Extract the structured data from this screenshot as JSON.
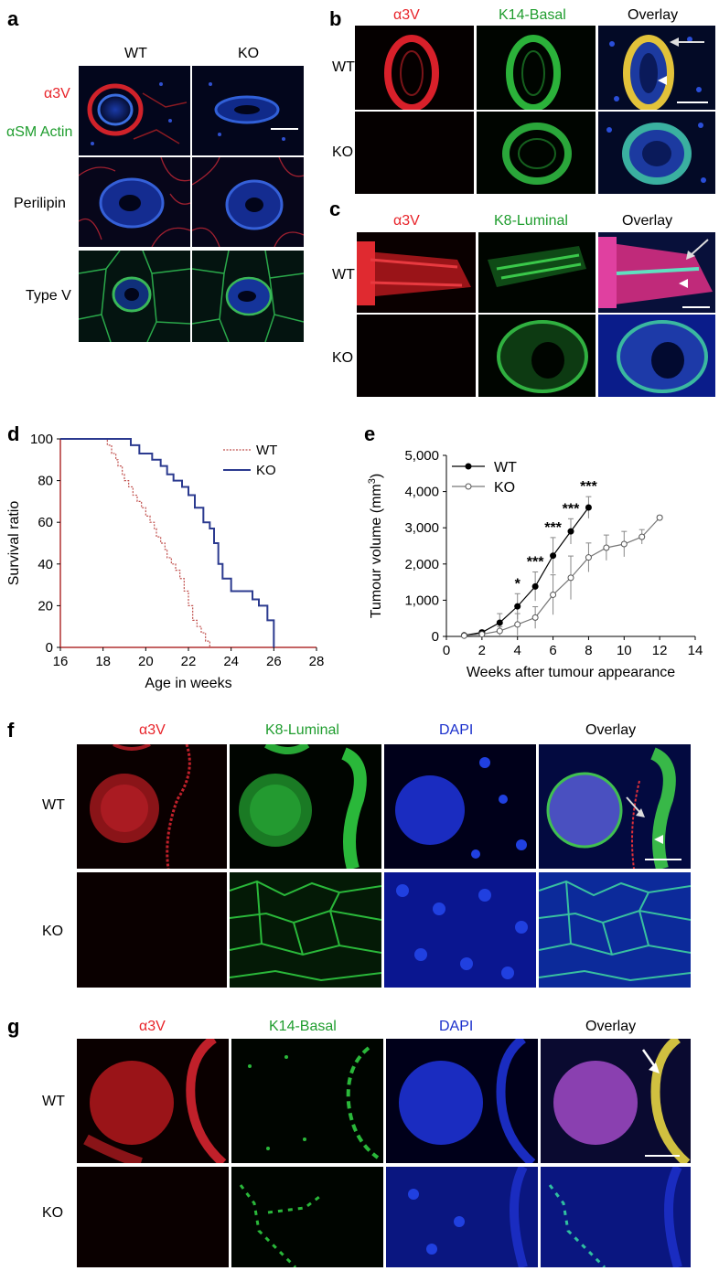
{
  "panels": {
    "a": {
      "letter": "a",
      "columns": [
        "WT",
        "KO"
      ],
      "rows": [
        {
          "label_parts": [
            "α3V",
            "αSM Actin"
          ],
          "label_colors": [
            "#e8242a",
            "#1f9d2e"
          ]
        },
        {
          "label_parts": [
            "Perilipin"
          ]
        },
        {
          "label_parts": [
            "Type V"
          ]
        }
      ]
    },
    "b": {
      "letter": "b",
      "columns": [
        {
          "text": "α3V",
          "color": "#e8242a"
        },
        {
          "text": "K14-Basal",
          "color": "#1f9d2e"
        },
        {
          "text": "Overlay",
          "color": "#000000"
        }
      ],
      "rows": [
        "WT",
        "KO"
      ]
    },
    "c": {
      "letter": "c",
      "columns": [
        {
          "text": "α3V",
          "color": "#e8242a"
        },
        {
          "text": "K8-Luminal",
          "color": "#1f9d2e"
        },
        {
          "text": "Overlay",
          "color": "#000000"
        }
      ],
      "rows": [
        "WT",
        "KO"
      ]
    },
    "f": {
      "letter": "f",
      "columns": [
        {
          "text": "α3V",
          "color": "#e8242a"
        },
        {
          "text": "K8-Luminal",
          "color": "#1f9d2e"
        },
        {
          "text": "DAPI",
          "color": "#1a2fcc"
        },
        {
          "text": "Overlay",
          "color": "#000000"
        }
      ],
      "rows": [
        "WT",
        "KO"
      ]
    },
    "g": {
      "letter": "g",
      "columns": [
        {
          "text": "α3V",
          "color": "#e8242a"
        },
        {
          "text": "K14-Basal",
          "color": "#1f9d2e"
        },
        {
          "text": "DAPI",
          "color": "#1a2fcc"
        },
        {
          "text": "Overlay",
          "color": "#000000"
        }
      ],
      "rows": [
        "WT",
        "KO"
      ]
    }
  },
  "chart_data": [
    {
      "panel": "d",
      "type": "line",
      "step": true,
      "xlabel": "Age in weeks",
      "ylabel": "Survival ratio",
      "xlim": [
        16,
        28
      ],
      "ylim": [
        0,
        100
      ],
      "xticks": [
        16,
        18,
        20,
        22,
        24,
        26,
        28
      ],
      "yticks": [
        0,
        20,
        40,
        60,
        80,
        100
      ],
      "legend_position": "top-right",
      "series": [
        {
          "name": "WT",
          "color": "#c0504d",
          "style": "dashed",
          "x": [
            16,
            18.0,
            18.2,
            18.4,
            18.6,
            18.7,
            18.9,
            19.0,
            19.2,
            19.4,
            19.6,
            19.8,
            20.0,
            20.2,
            20.4,
            20.5,
            20.7,
            20.9,
            21.0,
            21.2,
            21.4,
            21.6,
            21.8,
            22.0,
            22.2,
            22.4,
            22.6,
            22.8,
            23.0
          ],
          "y": [
            100,
            100,
            97,
            93,
            90,
            87,
            83,
            80,
            77,
            73,
            70,
            67,
            63,
            60,
            57,
            53,
            50,
            47,
            43,
            40,
            37,
            33,
            27,
            20,
            13,
            10,
            7,
            3,
            0
          ]
        },
        {
          "name": "KO",
          "color": "#2b3a8f",
          "style": "solid",
          "x": [
            16,
            19.0,
            19.3,
            19.7,
            20.3,
            20.7,
            21.0,
            21.3,
            21.7,
            22.0,
            22.3,
            22.7,
            23.0,
            23.2,
            23.4,
            23.6,
            24.0,
            25.0,
            25.3,
            25.7,
            26.0,
            26.0
          ],
          "y": [
            100,
            100,
            97,
            93,
            90,
            87,
            83,
            80,
            77,
            73,
            67,
            60,
            57,
            50,
            40,
            33,
            27,
            23,
            20,
            13,
            7,
            0
          ]
        }
      ]
    },
    {
      "panel": "e",
      "type": "line",
      "xlabel": "Weeks after tumour appearance",
      "ylabel": "Tumour volume (mm3)",
      "ylabel_main": "Tumour volume (mm",
      "ylabel_sup": "3",
      "ylabel_end": ")",
      "xlim": [
        0,
        14
      ],
      "ylim": [
        0,
        5000
      ],
      "xticks": [
        0,
        2,
        4,
        6,
        8,
        10,
        12,
        14
      ],
      "yticks": [
        0,
        1000,
        2000,
        3000,
        4000,
        5000
      ],
      "ytick_labels": [
        "0",
        "1,000",
        "2,000",
        "3,000",
        "4,000",
        "5,000"
      ],
      "legend_position": "top-left",
      "series": [
        {
          "name": "WT",
          "marker": "filled-circle",
          "x": [
            1,
            2,
            3,
            4,
            5,
            6,
            7,
            8
          ],
          "y": [
            30,
            110,
            380,
            830,
            1380,
            2230,
            2900,
            3560
          ],
          "err": [
            20,
            60,
            250,
            350,
            400,
            500,
            350,
            300
          ]
        },
        {
          "name": "KO",
          "marker": "open-circle",
          "x": [
            1,
            2,
            3,
            4,
            5,
            6,
            7,
            8,
            9,
            10,
            11,
            12
          ],
          "y": [
            20,
            60,
            150,
            330,
            520,
            1150,
            1620,
            2180,
            2450,
            2550,
            2750,
            3280
          ],
          "err": [
            15,
            40,
            120,
            300,
            300,
            550,
            600,
            400,
            350,
            350,
            200,
            50
          ]
        }
      ],
      "significance": [
        {
          "x": 4,
          "text": "*"
        },
        {
          "x": 5,
          "text": "***"
        },
        {
          "x": 6,
          "text": "***"
        },
        {
          "x": 7,
          "text": "***"
        },
        {
          "x": 8,
          "text": "***"
        }
      ]
    }
  ]
}
